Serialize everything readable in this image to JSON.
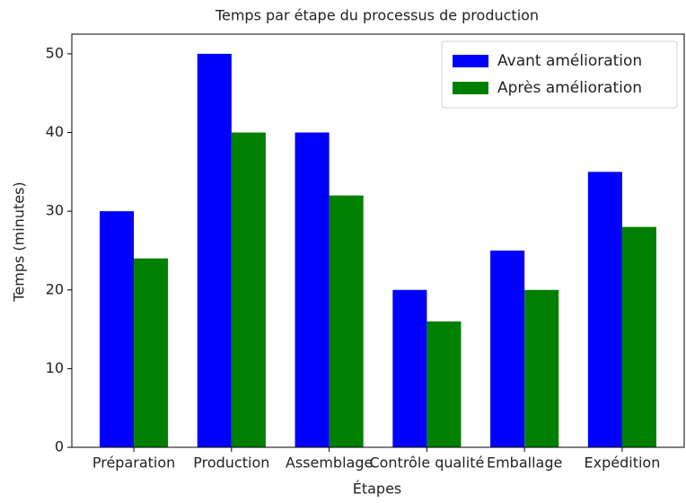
{
  "chart_data": {
    "type": "bar",
    "title": "Temps par étape du processus de production",
    "x_label": "Étapes",
    "y_label": "Temps (minutes)",
    "categories": [
      "Préparation",
      "Production",
      "Assemblage",
      "Contrôle qualité",
      "Emballage",
      "Expédition"
    ],
    "series": [
      {
        "name": "Avant amélioration",
        "color": "#0000ff",
        "values": [
          30,
          50,
          40,
          20,
          25,
          35
        ]
      },
      {
        "name": "Après amélioration",
        "color": "#008000",
        "values": [
          24,
          40,
          32,
          16,
          20,
          28
        ]
      }
    ],
    "ylim": [
      0,
      52.5
    ],
    "yticks": [
      0,
      10,
      20,
      30,
      40,
      50
    ],
    "legend": "upper right",
    "grid": false
  }
}
